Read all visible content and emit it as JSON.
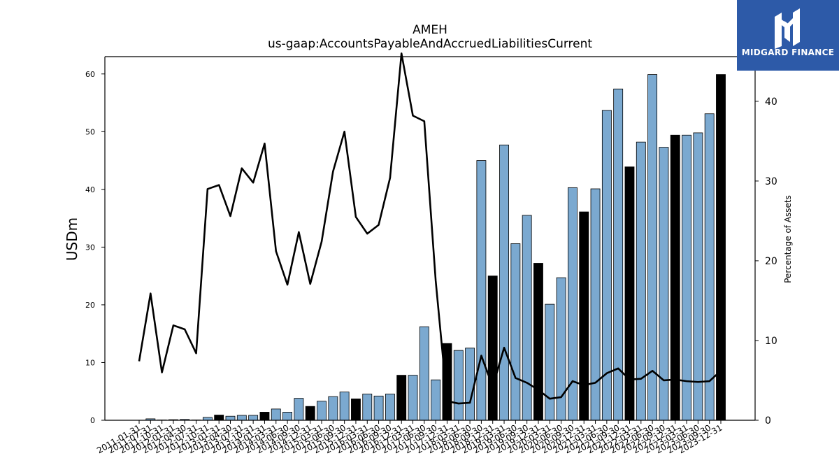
{
  "chart_data": {
    "type": "bar",
    "title": "AMEH",
    "subtitle": "us-gaap:AccountsPayableAndAccruedLiabilitiesCurrent",
    "ylabel": "USDm",
    "y2label": "Percentage of Assets",
    "ylim": [
      0,
      63
    ],
    "y2lim": [
      0,
      45.6
    ],
    "yticks": [
      0,
      10,
      20,
      30,
      40,
      50,
      60
    ],
    "y2ticks": [
      0,
      10,
      20,
      30,
      40
    ],
    "categories": [
      "2011-01-31",
      "2011-07-31",
      "2011-10-31",
      "2012-01-31",
      "2012-04-30",
      "2012-07-31",
      "2012-10-31",
      "2013-01-31",
      "2013-04-30",
      "2013-07-31",
      "2013-10-31",
      "2014-01-31",
      "2014-03-31",
      "2014-06-30",
      "2014-09-30",
      "2014-12-31",
      "2015-03-31",
      "2015-06-30",
      "2015-09-30",
      "2015-12-31",
      "2016-03-31",
      "2016-06-30",
      "2016-09-30",
      "2016-12-31",
      "2017-03-31",
      "2017-06-30",
      "2017-09-30",
      "2017-12-31",
      "2018-03-31",
      "2018-06-30",
      "2018-09-30",
      "2018-12-31",
      "2019-03-31",
      "2019-06-30",
      "2019-09-30",
      "2019-12-31",
      "2020-03-31",
      "2020-06-30",
      "2020-09-30",
      "2020-12-31",
      "2021-03-31",
      "2021-06-30",
      "2021-09-30",
      "2021-12-31",
      "2022-03-31",
      "2022-06-30",
      "2022-09-30",
      "2022-12-31",
      "2023-03-31",
      "2023-06-30",
      "2023-09-30",
      "2023-12-31"
    ],
    "series": [
      {
        "kind": "bar",
        "axis": "left",
        "values": [
          0.0,
          0.25,
          0.05,
          0.1,
          0.15,
          0.05,
          0.5,
          0.9,
          0.7,
          0.85,
          0.85,
          1.4,
          1.95,
          1.4,
          3.8,
          2.4,
          3.3,
          4.1,
          4.9,
          3.7,
          4.55,
          4.2,
          4.55,
          7.8,
          7.8,
          16.2,
          7.0,
          13.3,
          12.1,
          12.5,
          45.0,
          25.0,
          47.7,
          30.6,
          35.5,
          27.2,
          20.1,
          24.7,
          40.3,
          36.1,
          40.1,
          53.7,
          57.4,
          43.9,
          48.2,
          59.9,
          47.3,
          49.4,
          49.4,
          49.8,
          53.1,
          59.9
        ],
        "fourth_quarter": [
          false,
          false,
          false,
          true,
          false,
          false,
          false,
          true,
          false,
          false,
          false,
          true,
          false,
          false,
          false,
          true,
          false,
          false,
          false,
          true,
          false,
          false,
          false,
          true,
          false,
          false,
          false,
          true,
          false,
          false,
          false,
          true,
          false,
          false,
          false,
          true,
          false,
          false,
          false,
          true,
          false,
          false,
          false,
          true,
          false,
          false,
          false,
          true,
          false,
          false,
          false,
          true
        ]
      },
      {
        "kind": "line",
        "axis": "right",
        "values": [
          7.4,
          15.9,
          6.0,
          11.9,
          11.4,
          8.4,
          29.0,
          29.5,
          25.6,
          31.6,
          29.8,
          34.7,
          21.2,
          17.0,
          23.6,
          17.1,
          22.4,
          31.2,
          36.2,
          25.5,
          23.4,
          24.5,
          30.4,
          46.0,
          38.2,
          37.5,
          17.5,
          2.4,
          2.1,
          2.2,
          8.1,
          4.2,
          9.1,
          5.3,
          4.7,
          3.8,
          2.7,
          2.9,
          4.9,
          4.4,
          4.7,
          5.9,
          6.5,
          5.1,
          5.2,
          6.2,
          5.0,
          5.1,
          4.9,
          4.8,
          4.9,
          6.2
        ]
      }
    ],
    "colors": {
      "bar": "#7ba9d0",
      "bar_q4": "#000000",
      "line": "#000000",
      "axis": "#000000"
    }
  },
  "logo": {
    "text": "MIDGARD FINANCE",
    "background": "#2d5aa8"
  }
}
